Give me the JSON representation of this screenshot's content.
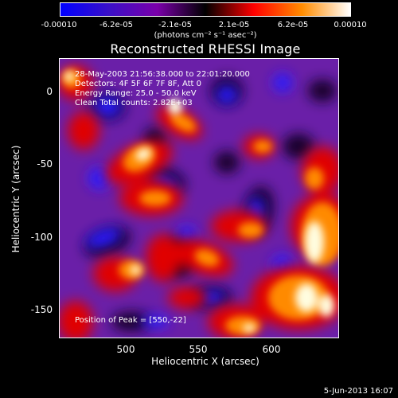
{
  "colorbar": {
    "tick_labels": [
      "-0.00010",
      "-6.2e-05",
      "-2.1e-05",
      "2.1e-05",
      "6.2e-05",
      "0.00010"
    ],
    "units_label": "(photons cm⁻² s⁻¹ asec⁻²)",
    "colors": [
      "#0000ff",
      "#3a10c8",
      "#7a00aa",
      "#000000",
      "#ff0000",
      "#ff8c00",
      "#ffffff"
    ]
  },
  "image": {
    "title": "Reconstructed RHESSI Image",
    "info_lines": [
      "28-May-2003 21:56:38.000 to 22:01:20.000",
      "Detectors: 4F 5F 6F 7F 8F, Att 0",
      "Energy Range: 25.0 - 50.0 keV",
      "Clean    Total counts: 2.82E+03"
    ],
    "peak_label": "Position of Peak = [550,-22]"
  },
  "axes": {
    "xlabel": "Heliocentric X (arcsec)",
    "ylabel": "Heliocentric Y (arcsec)",
    "x_ticks": [
      "500",
      "550",
      "600"
    ],
    "y_ticks": [
      "0",
      "-50",
      "-100",
      "-150"
    ],
    "xlim": [
      453,
      644
    ],
    "ylim": [
      -170,
      18
    ]
  },
  "footer": {
    "date": "5-Jun-2013 16:07"
  }
}
